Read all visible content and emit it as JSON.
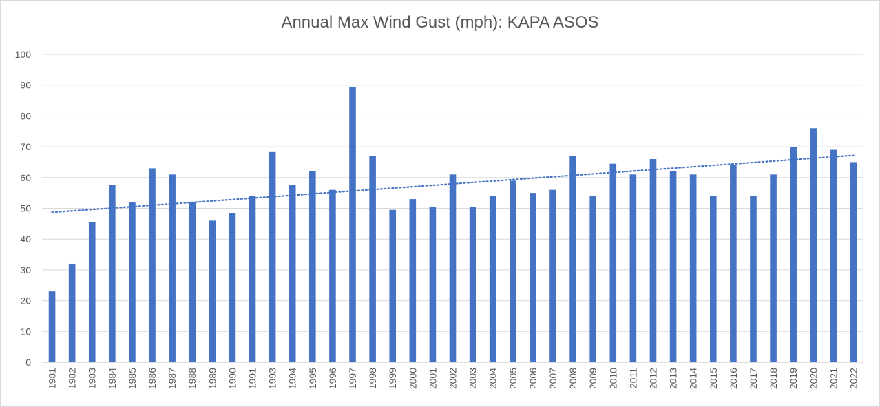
{
  "chart_data": {
    "type": "bar",
    "title": "Annual Max Wind Gust (mph): KAPA ASOS",
    "xlabel": "",
    "ylabel": "",
    "ylim": [
      0,
      100
    ],
    "yticks": [
      0,
      10,
      20,
      30,
      40,
      50,
      60,
      70,
      80,
      90,
      100
    ],
    "grid": true,
    "legend": "none",
    "colors": {
      "bar": "#4472c4",
      "trendline": "#4472c4",
      "grid": "#d9d9d9",
      "text": "#595959"
    },
    "trendline": {
      "type": "linear",
      "style": "dotted",
      "start": 48.7,
      "end": 67.2
    },
    "categories": [
      "1981",
      "1982",
      "1983",
      "1984",
      "1985",
      "1986",
      "1987",
      "1988",
      "1989",
      "1990",
      "1991",
      "1993",
      "1994",
      "1995",
      "1996",
      "1997",
      "1998",
      "1999",
      "2000",
      "2001",
      "2002",
      "2003",
      "2004",
      "2005",
      "2006",
      "2007",
      "2008",
      "2009",
      "2010",
      "2011",
      "2012",
      "2013",
      "2014",
      "2015",
      "2016",
      "2017",
      "2018",
      "2019",
      "2020",
      "2021",
      "2022"
    ],
    "values": [
      23,
      32,
      45.5,
      57.5,
      52,
      63,
      61,
      52,
      46,
      48.5,
      54,
      68.5,
      57.5,
      62,
      56,
      89.5,
      67,
      49.5,
      53,
      50.5,
      61,
      50.5,
      54,
      59,
      55,
      56,
      67,
      54,
      64.5,
      61,
      66,
      62,
      61,
      54,
      64,
      54,
      61,
      70,
      76,
      69,
      65
    ]
  }
}
